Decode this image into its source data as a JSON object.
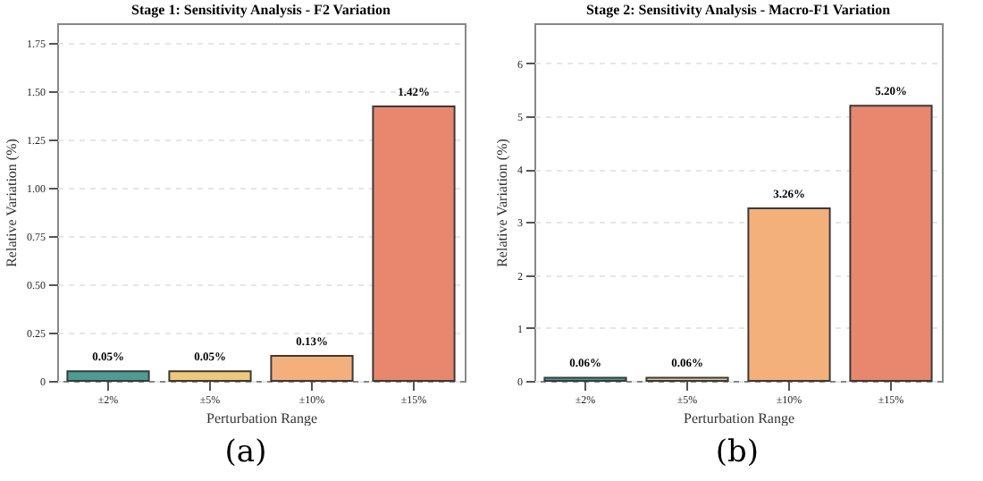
{
  "chart_data": [
    {
      "type": "bar",
      "title": "Stage 1: Sensitivity Analysis - F2 Variation",
      "xlabel": "Perturbation Range",
      "ylabel": "Relative Variation (%)",
      "categories": [
        "±2%",
        "±5%",
        "±10%",
        "±15%"
      ],
      "values": [
        0.05,
        0.05,
        0.13,
        1.42
      ],
      "colors": [
        "#4a9e94",
        "#f0c878",
        "#f4b07a",
        "#e8876e"
      ],
      "value_labels": [
        "0.05%",
        "0.05%",
        "0.13%",
        "1.42%"
      ],
      "ylim": [
        0,
        1.85
      ],
      "yticks": [
        0,
        {
          "value": 0.25,
          "label": "0.25"
        },
        {
          "value": 0.5,
          "label": "0.50"
        },
        {
          "value": 0.75,
          "label": "0.75"
        },
        {
          "value": 1,
          "label": "1.00"
        },
        {
          "value": 1.25,
          "label": "1.25"
        },
        {
          "value": 1.5,
          "label": "1.50"
        },
        {
          "value": 1.75,
          "label": "1.75"
        }
      ],
      "grid": "y",
      "annotations": [
        "(a)"
      ]
    },
    {
      "type": "bar",
      "title": "Stage 2: Sensitivity Analysis - Macro-F1 Variation",
      "xlabel": "Perturbation Range",
      "ylabel": "Relative Variation (%)",
      "categories": [
        "±2%",
        "±5%",
        "±10%",
        "±15%"
      ],
      "values": [
        0.06,
        0.06,
        3.26,
        5.2
      ],
      "colors": [
        "#4a9e94",
        "#e8c88a",
        "#f4b07a",
        "#e8876e"
      ],
      "value_labels": [
        "0.06%",
        "0.06%",
        "3.26%",
        "5.20%"
      ],
      "ylim": [
        0,
        6.76
      ],
      "yticks": [
        0,
        1,
        2,
        3,
        4,
        5,
        6
      ],
      "grid": "y",
      "annotations": [
        "(b)"
      ]
    }
  ]
}
